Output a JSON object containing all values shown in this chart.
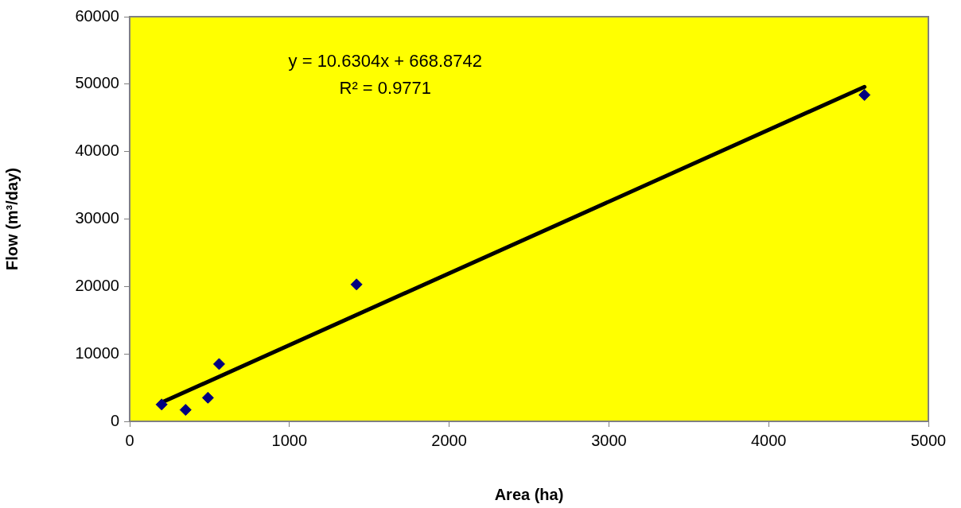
{
  "chart_data": {
    "type": "scatter",
    "xlabel": "Area (ha)",
    "ylabel": "Flow (m³/day)",
    "annotations": [
      "y = 10.6304x + 668.8742",
      "R² = 0.9771"
    ],
    "xlim": [
      0,
      5000
    ],
    "xticks": [
      0,
      1000,
      2000,
      3000,
      4000,
      5000
    ],
    "ylim": [
      0,
      60000
    ],
    "yticks": [
      0,
      10000,
      20000,
      30000,
      40000,
      50000,
      60000
    ],
    "grid": false,
    "legend": false,
    "series": [
      {
        "marker": "diamond",
        "color": "#000080",
        "x": [
          200,
          350,
          490,
          560,
          1420,
          4600
        ],
        "values": [
          2500,
          1700,
          3500,
          8500,
          20300,
          48400
        ]
      },
      {
        "type": "line",
        "marker": "none",
        "color": "#000000",
        "x": [
          200,
          4600
        ],
        "values": [
          2800,
          49600
        ]
      }
    ]
  }
}
